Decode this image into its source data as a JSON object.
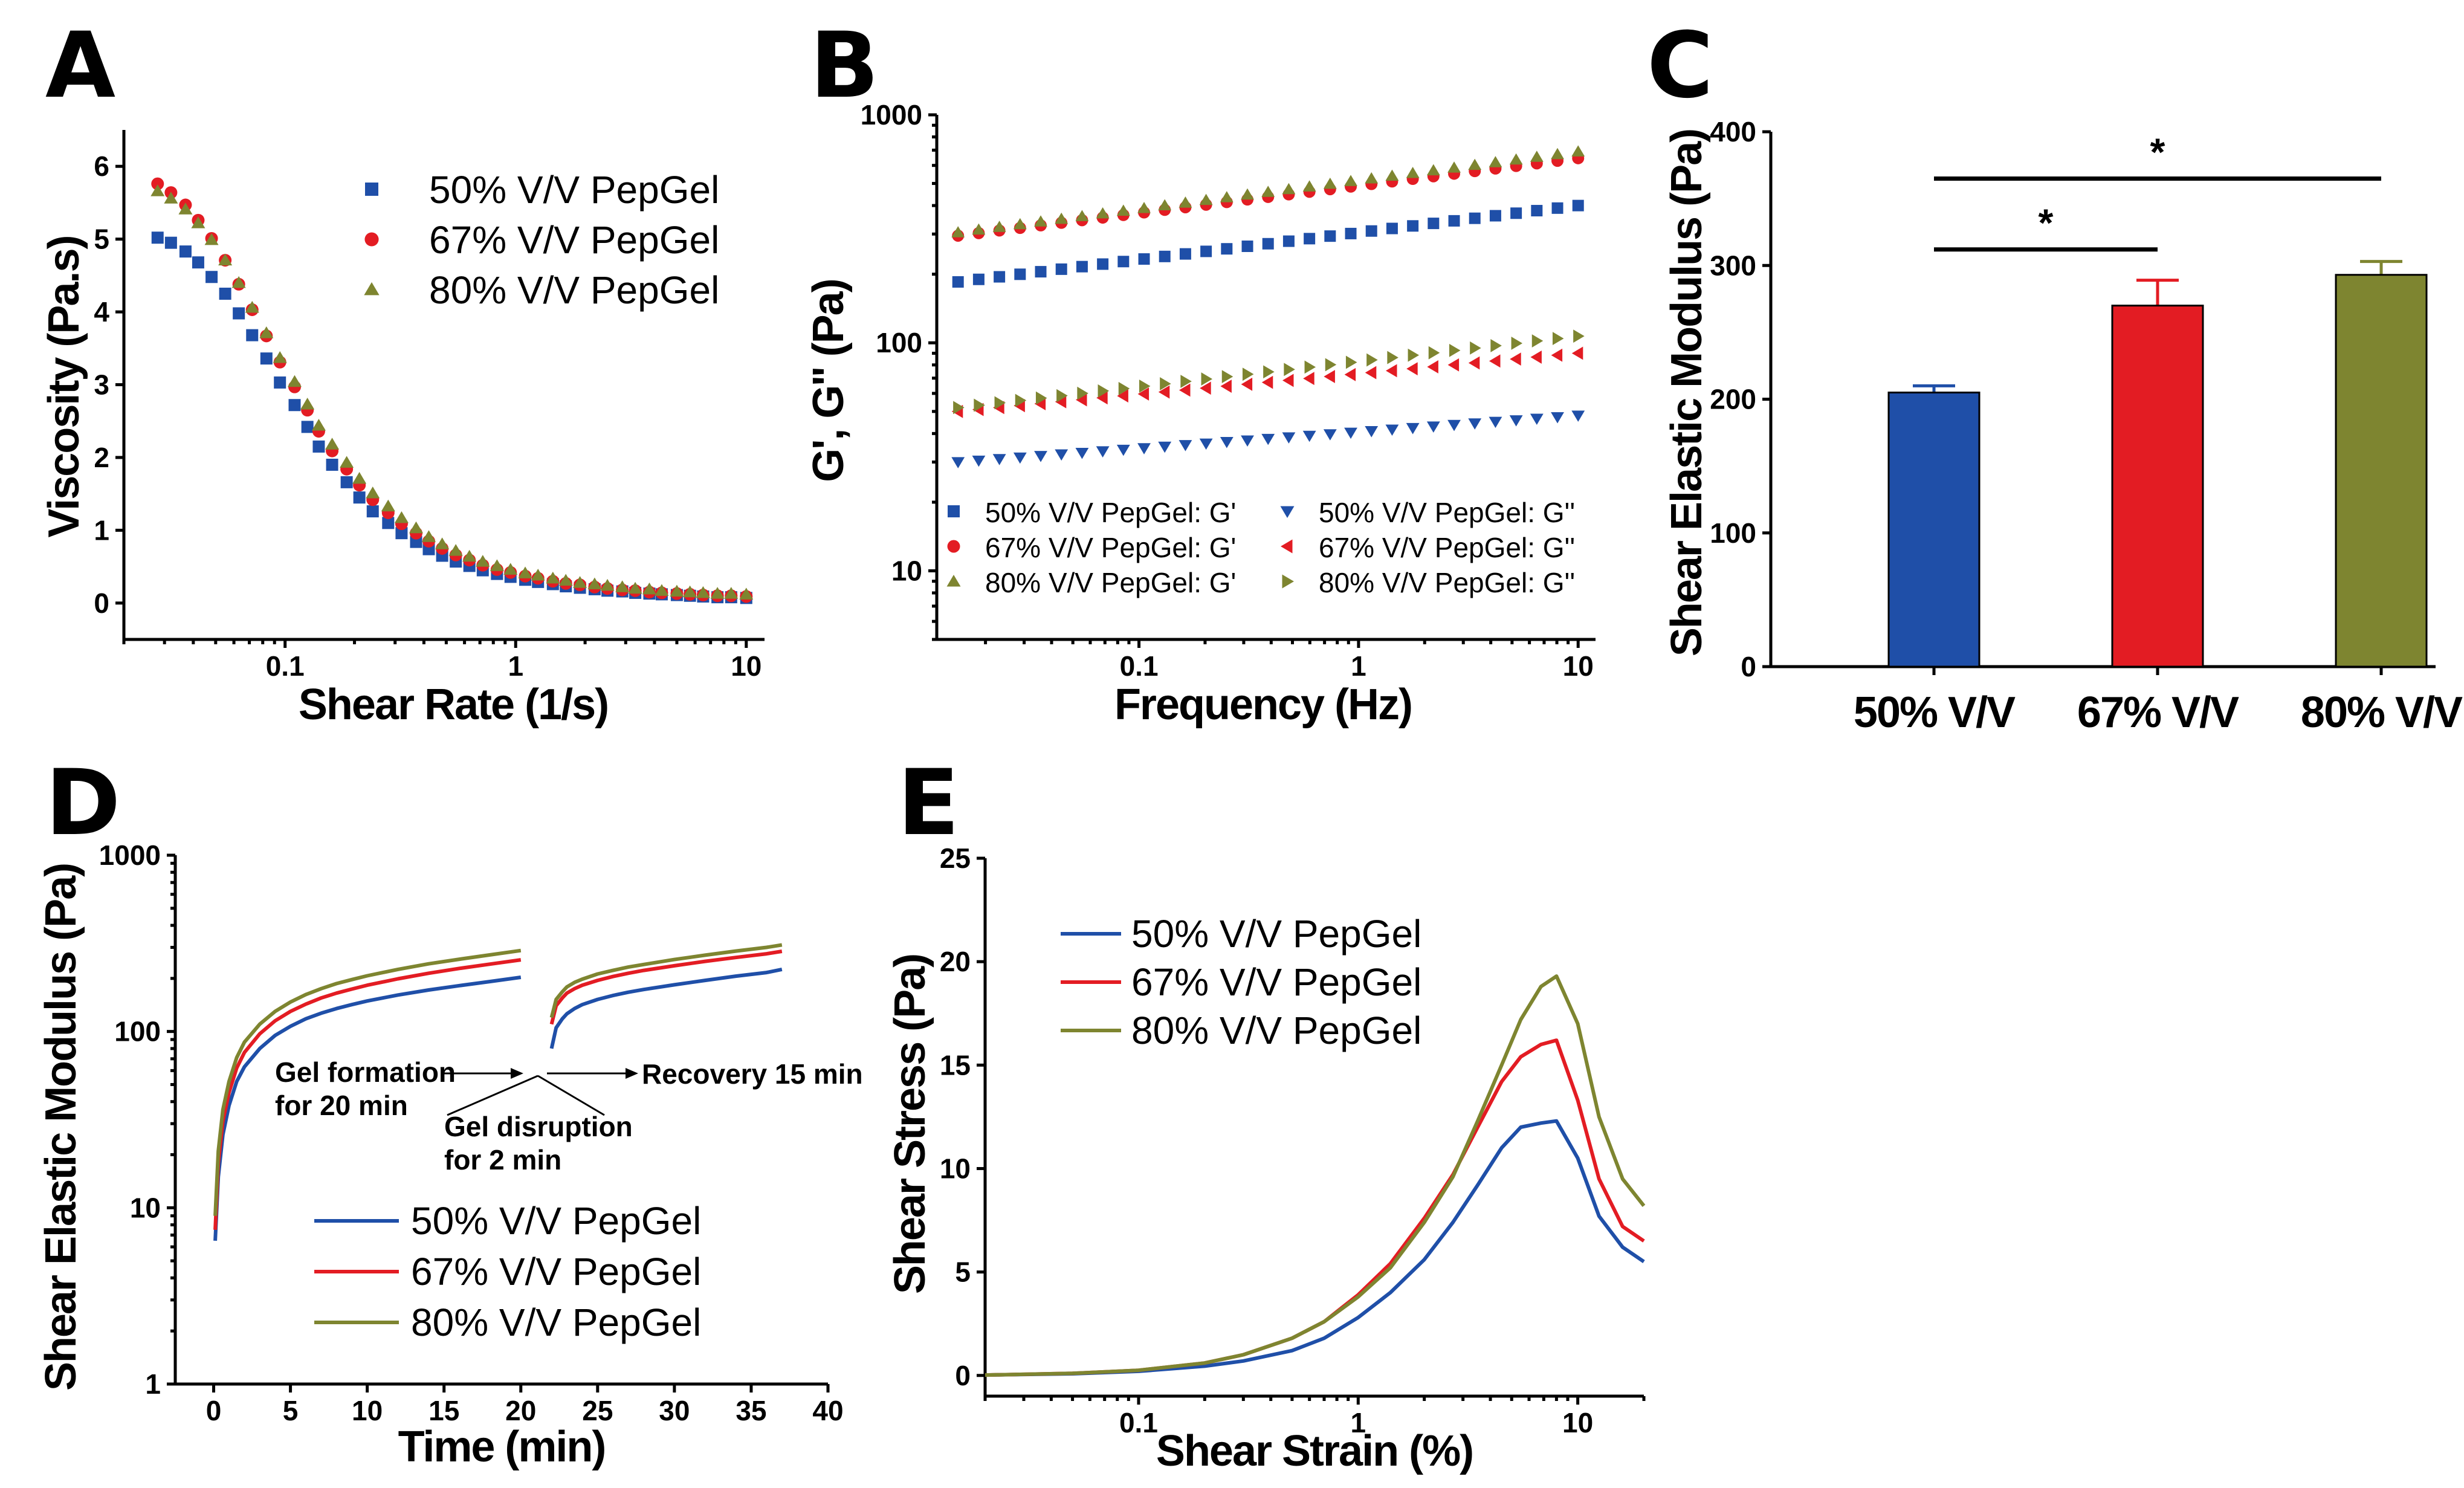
{
  "colors": {
    "c50": "#1f4fa8",
    "c67": "#e31c23",
    "c80": "#7e8530"
  },
  "chart_data": [
    {
      "panel": "A",
      "type": "scatter",
      "xlabel": "Shear Rate (1/s)",
      "ylabel": "Viscosity (Pa.s)",
      "xscale": "log",
      "xlim": [
        0.02,
        12
      ],
      "ylim": [
        -0.5,
        6.5
      ],
      "xticks": [
        {
          "v": 0.1,
          "label": "0.1"
        },
        {
          "v": 1,
          "label": "1"
        },
        {
          "v": 10,
          "label": "10"
        }
      ],
      "yticks": [
        {
          "v": 0,
          "label": "0"
        },
        {
          "v": 1,
          "label": "1"
        },
        {
          "v": 2,
          "label": "2"
        },
        {
          "v": 3,
          "label": "3"
        },
        {
          "v": 4,
          "label": "4"
        },
        {
          "v": 5,
          "label": "5"
        },
        {
          "v": 6,
          "label": "6"
        }
      ],
      "legend": "top-right",
      "series": [
        {
          "name": "50% V/V PepGel",
          "marker": "square",
          "color": "c50",
          "x": [
            0.028,
            0.032,
            0.037,
            0.042,
            0.048,
            0.055,
            0.063,
            0.072,
            0.083,
            0.095,
            0.11,
            0.125,
            0.14,
            0.16,
            0.185,
            0.21,
            0.24,
            0.28,
            0.32,
            0.37,
            0.42,
            0.48,
            0.55,
            0.63,
            0.72,
            0.83,
            0.95,
            1.1,
            1.25,
            1.45,
            1.65,
            1.9,
            2.2,
            2.5,
            2.9,
            3.3,
            3.8,
            4.3,
            5.0,
            5.7,
            6.5,
            7.5,
            8.6,
            10
          ],
          "y": [
            5.02,
            4.95,
            4.83,
            4.68,
            4.48,
            4.25,
            3.98,
            3.68,
            3.36,
            3.03,
            2.72,
            2.42,
            2.15,
            1.9,
            1.66,
            1.45,
            1.26,
            1.1,
            0.96,
            0.84,
            0.74,
            0.65,
            0.57,
            0.51,
            0.45,
            0.4,
            0.36,
            0.32,
            0.29,
            0.26,
            0.23,
            0.21,
            0.19,
            0.17,
            0.16,
            0.14,
            0.13,
            0.12,
            0.11,
            0.1,
            0.09,
            0.08,
            0.08,
            0.07
          ]
        },
        {
          "name": "67% V/V PepGel",
          "marker": "circle",
          "color": "c67",
          "x": [
            0.028,
            0.032,
            0.037,
            0.042,
            0.048,
            0.055,
            0.063,
            0.072,
            0.083,
            0.095,
            0.11,
            0.125,
            0.14,
            0.16,
            0.185,
            0.21,
            0.24,
            0.28,
            0.32,
            0.37,
            0.42,
            0.48,
            0.55,
            0.63,
            0.72,
            0.83,
            0.95,
            1.1,
            1.25,
            1.45,
            1.65,
            1.9,
            2.2,
            2.5,
            2.9,
            3.3,
            3.8,
            4.3,
            5.0,
            5.7,
            6.5,
            7.5,
            8.6,
            10
          ],
          "y": [
            5.76,
            5.64,
            5.47,
            5.26,
            5.01,
            4.71,
            4.38,
            4.03,
            3.67,
            3.31,
            2.97,
            2.65,
            2.36,
            2.09,
            1.84,
            1.62,
            1.42,
            1.24,
            1.09,
            0.96,
            0.85,
            0.75,
            0.66,
            0.59,
            0.52,
            0.46,
            0.42,
            0.37,
            0.34,
            0.3,
            0.27,
            0.25,
            0.22,
            0.2,
            0.18,
            0.17,
            0.15,
            0.14,
            0.13,
            0.12,
            0.11,
            0.1,
            0.1,
            0.09
          ]
        },
        {
          "name": "80% V/V PepGel",
          "marker": "triangle",
          "color": "c80",
          "x": [
            0.028,
            0.032,
            0.037,
            0.042,
            0.048,
            0.055,
            0.063,
            0.072,
            0.083,
            0.095,
            0.11,
            0.125,
            0.14,
            0.16,
            0.185,
            0.21,
            0.24,
            0.28,
            0.32,
            0.37,
            0.42,
            0.48,
            0.55,
            0.63,
            0.72,
            0.83,
            0.95,
            1.1,
            1.25,
            1.45,
            1.65,
            1.9,
            2.2,
            2.5,
            2.9,
            3.3,
            3.8,
            4.3,
            5.0,
            5.7,
            6.5,
            7.5,
            8.6,
            10
          ],
          "y": [
            5.66,
            5.56,
            5.41,
            5.22,
            4.99,
            4.71,
            4.4,
            4.06,
            3.71,
            3.37,
            3.04,
            2.73,
            2.44,
            2.18,
            1.93,
            1.71,
            1.51,
            1.33,
            1.17,
            1.03,
            0.91,
            0.81,
            0.72,
            0.64,
            0.57,
            0.51,
            0.46,
            0.41,
            0.38,
            0.34,
            0.31,
            0.28,
            0.26,
            0.24,
            0.22,
            0.2,
            0.19,
            0.17,
            0.16,
            0.15,
            0.14,
            0.13,
            0.13,
            0.12
          ]
        }
      ]
    },
    {
      "panel": "B",
      "type": "scatter",
      "xlabel": "Frequency (Hz)",
      "ylabel": "G', G'' (Pa)",
      "xscale": "log",
      "yscale": "log",
      "xlim": [
        0.012,
        12
      ],
      "ylim": [
        5,
        1000
      ],
      "xticks": [
        {
          "v": 0.1,
          "label": "0.1"
        },
        {
          "v": 1,
          "label": "1"
        },
        {
          "v": 10,
          "label": "10"
        }
      ],
      "yticks": [
        {
          "v": 10,
          "label": "10"
        },
        {
          "v": 100,
          "label": "100"
        },
        {
          "v": 1000,
          "label": "1000"
        }
      ],
      "legend": "bottom",
      "n_points": 31,
      "freq_range": [
        0.015,
        10
      ],
      "series": [
        {
          "name": "50% V/V PepGel: G'",
          "marker": "square",
          "color": "c50",
          "start": 185,
          "end": 400
        },
        {
          "name": "67% V/V PepGel: G'",
          "marker": "circle",
          "color": "c67",
          "start": 295,
          "end": 645
        },
        {
          "name": "80% V/V PepGel: G'",
          "marker": "triangle",
          "color": "c80",
          "start": 305,
          "end": 690
        },
        {
          "name": "50% V/V PepGel: G''",
          "marker": "tri-down",
          "color": "c50",
          "start": 30,
          "end": 48
        },
        {
          "name": "67% V/V PepGel: G''",
          "marker": "tri-left",
          "color": "c67",
          "start": 50,
          "end": 90
        },
        {
          "name": "80% V/V PepGel: G''",
          "marker": "tri-right",
          "color": "c80",
          "start": 52,
          "end": 107
        }
      ]
    },
    {
      "panel": "C",
      "type": "bar",
      "ylabel": "Shear Elastic Modulus (Pa)",
      "ylim": [
        0,
        400
      ],
      "yticks": [
        {
          "v": 0,
          "label": "0"
        },
        {
          "v": 100,
          "label": "100"
        },
        {
          "v": 200,
          "label": "200"
        },
        {
          "v": 300,
          "label": "300"
        },
        {
          "v": 400,
          "label": "400"
        }
      ],
      "categories": [
        "50% V/V",
        "67% V/V",
        "80% V/V"
      ],
      "values": [
        205,
        270,
        293
      ],
      "errors": [
        5,
        19,
        10
      ],
      "colors": [
        "c50",
        "c67",
        "c80"
      ],
      "significance": [
        {
          "from": 0,
          "to": 1,
          "y": 312,
          "label": "*"
        },
        {
          "from": 0,
          "to": 2,
          "y": 365,
          "label": "*"
        }
      ]
    },
    {
      "panel": "D",
      "type": "line",
      "xlabel": "Time (min)",
      "ylabel": "Shear Elastic Modulus (Pa)",
      "yscale": "log",
      "xlim": [
        -2.5,
        40
      ],
      "ylim": [
        1,
        1000
      ],
      "xticks": [
        {
          "v": 0,
          "label": "0"
        },
        {
          "v": 5,
          "label": "5"
        },
        {
          "v": 10,
          "label": "10"
        },
        {
          "v": 15,
          "label": "15"
        },
        {
          "v": 20,
          "label": "20"
        },
        {
          "v": 25,
          "label": "25"
        },
        {
          "v": 30,
          "label": "30"
        },
        {
          "v": 35,
          "label": "35"
        },
        {
          "v": 40,
          "label": "40"
        }
      ],
      "yticks": [
        {
          "v": 1,
          "label": "1"
        },
        {
          "v": 10,
          "label": "10"
        },
        {
          "v": 100,
          "label": "100"
        },
        {
          "v": 1000,
          "label": "1000"
        }
      ],
      "legend": "bottom-center",
      "annotations": {
        "formation_line1": "Gel formation",
        "formation_line2": "for 20 min",
        "disruption_line1": "Gel disruption",
        "disruption_line2": "for 2 min",
        "recovery": "Recovery 15 min"
      },
      "series": [
        {
          "name": "50% V/V PepGel",
          "color": "c50",
          "segments": [
            {
              "x": [
                0.1,
                0.3,
                0.6,
                1,
                1.5,
                2,
                3,
                4,
                5,
                6,
                7,
                8,
                9,
                10,
                12,
                14,
                16,
                18,
                20
              ],
              "y": [
                6.5,
                15,
                26,
                38,
                52,
                63,
                80,
                95,
                107,
                118,
                127,
                135,
                142,
                149,
                161,
                172,
                182,
                192,
                203
              ]
            },
            {
              "x": [
                22,
                22.3,
                22.7,
                23,
                23.5,
                24,
                25,
                26,
                27,
                28,
                30,
                32,
                34,
                36,
                37
              ],
              "y": [
                80,
                105,
                118,
                126,
                135,
                142,
                152,
                160,
                167,
                173,
                184,
                195,
                206,
                216,
                225
              ]
            }
          ]
        },
        {
          "name": "67% V/V PepGel",
          "color": "c67",
          "segments": [
            {
              "x": [
                0.1,
                0.3,
                0.6,
                1,
                1.5,
                2,
                3,
                4,
                5,
                6,
                7,
                8,
                9,
                10,
                12,
                14,
                16,
                18,
                20
              ],
              "y": [
                7.5,
                18,
                31,
                45,
                62,
                76,
                97,
                115,
                130,
                143,
                155,
                165,
                174,
                183,
                199,
                214,
                228,
                241,
                255
              ]
            },
            {
              "x": [
                22,
                22.3,
                22.7,
                23,
                23.5,
                24,
                25,
                26,
                27,
                28,
                30,
                32,
                34,
                36,
                37
              ],
              "y": [
                110,
                140,
                155,
                165,
                175,
                183,
                195,
                205,
                214,
                222,
                236,
                250,
                263,
                276,
                285
              ]
            }
          ]
        },
        {
          "name": "80% V/V PepGel",
          "color": "c80",
          "segments": [
            {
              "x": [
                0.1,
                0.3,
                0.6,
                1,
                1.5,
                2,
                3,
                4,
                5,
                6,
                7,
                8,
                9,
                10,
                12,
                14,
                16,
                18,
                20
              ],
              "y": [
                9,
                21,
                36,
                52,
                71,
                87,
                110,
                130,
                147,
                162,
                175,
                187,
                197,
                207,
                225,
                242,
                257,
                272,
                288
              ]
            },
            {
              "x": [
                22,
                22.3,
                22.7,
                23,
                23.5,
                24,
                25,
                26,
                27,
                28,
                30,
                32,
                34,
                36,
                37
              ],
              "y": [
                120,
                152,
                168,
                179,
                190,
                198,
                212,
                222,
                232,
                240,
                256,
                271,
                286,
                300,
                310
              ]
            }
          ]
        }
      ]
    },
    {
      "panel": "E",
      "type": "line",
      "xlabel": "Shear Strain (%)",
      "ylabel": "Shear Stress (Pa)",
      "xscale": "log",
      "xlim": [
        0.02,
        20
      ],
      "ylim": [
        -1,
        25
      ],
      "xticks": [
        {
          "v": 0.1,
          "label": "0.1"
        },
        {
          "v": 1,
          "label": "1"
        },
        {
          "v": 10,
          "label": "10"
        }
      ],
      "yticks": [
        {
          "v": 0,
          "label": "0"
        },
        {
          "v": 5,
          "label": "5"
        },
        {
          "v": 10,
          "label": "10"
        },
        {
          "v": 15,
          "label": "15"
        },
        {
          "v": 20,
          "label": "20"
        },
        {
          "v": 25,
          "label": "25"
        }
      ],
      "legend": "top-left",
      "series": [
        {
          "name": "50% V/V PepGel",
          "color": "c50",
          "x": [
            0.02,
            0.05,
            0.1,
            0.2,
            0.3,
            0.5,
            0.7,
            1,
            1.4,
            2,
            2.7,
            3.5,
            4.5,
            5.5,
            6.8,
            8,
            10,
            12.5,
            16,
            20
          ],
          "y": [
            0.02,
            0.08,
            0.2,
            0.45,
            0.7,
            1.2,
            1.8,
            2.8,
            4.0,
            5.6,
            7.4,
            9.2,
            11.0,
            12.0,
            12.2,
            12.3,
            10.5,
            7.7,
            6.2,
            5.5
          ]
        },
        {
          "name": "67% V/V PepGel",
          "color": "c67",
          "x": [
            0.02,
            0.05,
            0.1,
            0.2,
            0.3,
            0.5,
            0.7,
            1,
            1.4,
            2,
            2.7,
            3.5,
            4.5,
            5.5,
            6.8,
            8,
            10,
            12.5,
            16,
            20
          ],
          "y": [
            0.02,
            0.1,
            0.25,
            0.6,
            1.0,
            1.8,
            2.6,
            3.9,
            5.4,
            7.6,
            9.7,
            12.0,
            14.2,
            15.4,
            16.0,
            16.2,
            13.3,
            9.5,
            7.2,
            6.5
          ]
        },
        {
          "name": "80% V/V PepGel",
          "color": "c80",
          "x": [
            0.02,
            0.05,
            0.1,
            0.2,
            0.3,
            0.5,
            0.7,
            1,
            1.4,
            2,
            2.7,
            3.5,
            4.5,
            5.5,
            6.8,
            8,
            10,
            12.5,
            16,
            20
          ],
          "y": [
            0.02,
            0.1,
            0.25,
            0.6,
            1.0,
            1.8,
            2.6,
            3.8,
            5.2,
            7.4,
            9.6,
            12.3,
            15.0,
            17.2,
            18.8,
            19.3,
            17.0,
            12.5,
            9.5,
            8.2
          ]
        }
      ]
    }
  ]
}
